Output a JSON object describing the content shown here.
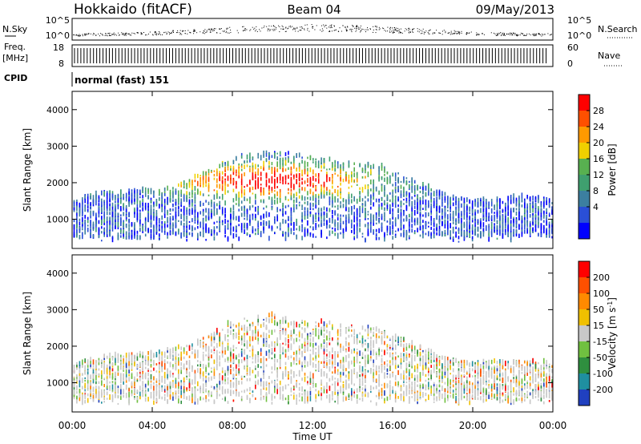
{
  "header": {
    "station": "Hokkaido (fitACF)",
    "beam": "Beam 04",
    "date": "09/May/2013"
  },
  "top_panels": {
    "nsky_label": "N.Sky",
    "nsearch_label": "N.Search",
    "nsky_ticks": [
      "10^5",
      "10^0"
    ],
    "nsearch_ticks": [
      "10^5",
      "10^0"
    ],
    "freq_label": "Freq.",
    "freq_unit": "[MHz]",
    "freq_ticks": [
      "18",
      "8"
    ],
    "nave_label": "Nave",
    "nave_ticks": [
      "60",
      "0"
    ],
    "cpid_label": "CPID",
    "cpid_value": "normal (fast) 151"
  },
  "chart_data": [
    {
      "type": "heatmap",
      "panel": "power",
      "ylabel": "Slant Range [km]",
      "yticks": [
        "4000",
        "3000",
        "2000",
        "1000"
      ],
      "ylim": [
        200,
        4500
      ],
      "xlim_hours": [
        0,
        24
      ],
      "colorbar": {
        "label": "Power [dB]",
        "ticks": [
          "28",
          "24",
          "20",
          "16",
          "12",
          "8",
          "4"
        ],
        "range": [
          0,
          30
        ],
        "colors": [
          "#0000ff",
          "#2a4fd6",
          "#3c7fa0",
          "#3f9f6f",
          "#58b050",
          "#f0d000",
          "#ff9a00",
          "#ff5000",
          "#ff0000"
        ]
      }
    },
    {
      "type": "heatmap",
      "panel": "velocity",
      "ylabel": "Slant Range [km]",
      "yticks": [
        "4000",
        "3000",
        "2000",
        "1000"
      ],
      "ylim": [
        200,
        4500
      ],
      "xlim_hours": [
        0,
        24
      ],
      "colorbar": {
        "label": "Velocity [m s",
        "label_sup": "-1",
        "label_end": "]",
        "ticks": [
          "200",
          "100",
          "50",
          "15",
          "-15",
          "-50",
          "-100",
          "-200"
        ],
        "colors": [
          "#2040c0",
          "#1f8fa0",
          "#2f8f3f",
          "#70c040",
          "#c8c8c8",
          "#f0c000",
          "#ff8a00",
          "#ff5000",
          "#ff0000"
        ]
      }
    }
  ],
  "x_axis": {
    "ticks": [
      "00:00",
      "04:00",
      "08:00",
      "12:00",
      "16:00",
      "20:00",
      "00:00"
    ],
    "label": "Time UT"
  }
}
